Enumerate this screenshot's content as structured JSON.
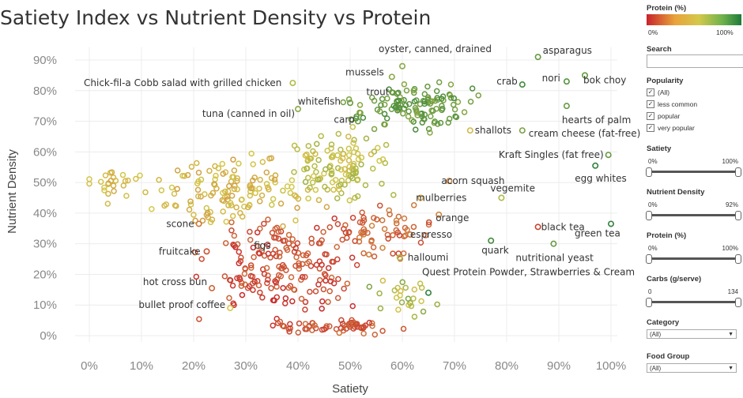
{
  "title": "Satiety Index vs Nutrient Density vs Protein",
  "chart_data": {
    "type": "scatter",
    "title": "Satiety Index vs Nutrient Density vs Protein",
    "xlabel": "Satiety",
    "ylabel": "Nutrient Density",
    "xlim": [
      0,
      1
    ],
    "ylim": [
      0,
      0.92
    ],
    "xticks": [
      "0%",
      "10%",
      "20%",
      "30%",
      "40%",
      "50%",
      "60%",
      "70%",
      "80%",
      "90%",
      "100%"
    ],
    "yticks": [
      "0%",
      "10%",
      "20%",
      "30%",
      "40%",
      "50%",
      "60%",
      "70%",
      "80%",
      "90%"
    ],
    "color_encoding": "Protein (%)",
    "grid": true,
    "labeled_points": [
      {
        "label": "asparagus",
        "x": 0.86,
        "y": 0.91,
        "protein": 0.8
      },
      {
        "label": "oyster, canned, drained",
        "x": 0.6,
        "y": 0.88,
        "protein": 0.7
      },
      {
        "label": "mussels",
        "x": 0.58,
        "y": 0.845,
        "protein": 0.7
      },
      {
        "label": "bok choy",
        "x": 0.95,
        "y": 0.85,
        "protein": 0.8
      },
      {
        "label": "nori",
        "x": 0.915,
        "y": 0.83,
        "protein": 0.85
      },
      {
        "label": "crab",
        "x": 0.83,
        "y": 0.82,
        "protein": 0.9
      },
      {
        "label": "Chick-fil-a Cobb salad with grilled chicken",
        "x": 0.39,
        "y": 0.825,
        "protein": 0.6
      },
      {
        "label": "trout",
        "x": 0.59,
        "y": 0.79,
        "protein": 0.8
      },
      {
        "label": "whitefish",
        "x": 0.5,
        "y": 0.76,
        "protein": 0.8
      },
      {
        "label": "hearts of palm",
        "x": 0.915,
        "y": 0.75,
        "protein": 0.8
      },
      {
        "label": "tuna (canned in oil)",
        "x": 0.4,
        "y": 0.74,
        "protein": 0.7
      },
      {
        "label": "carp",
        "x": 0.515,
        "y": 0.7,
        "protein": 0.8
      },
      {
        "label": "shallots",
        "x": 0.73,
        "y": 0.67,
        "protein": 0.45
      },
      {
        "label": "cream cheese (fat-free)",
        "x": 0.83,
        "y": 0.67,
        "protein": 0.75
      },
      {
        "label": "Kraft Singles (fat free)",
        "x": 0.995,
        "y": 0.59,
        "protein": 0.8
      },
      {
        "label": "egg whites",
        "x": 0.97,
        "y": 0.555,
        "protein": 0.95
      },
      {
        "label": "acorn squash",
        "x": 0.69,
        "y": 0.505,
        "protein": 0.3
      },
      {
        "label": "mulberries",
        "x": 0.635,
        "y": 0.45,
        "protein": 0.4
      },
      {
        "label": "vegemite",
        "x": 0.79,
        "y": 0.45,
        "protein": 0.6
      },
      {
        "label": "orange",
        "x": 0.67,
        "y": 0.395,
        "protein": 0.3
      },
      {
        "label": "scone",
        "x": 0.21,
        "y": 0.365,
        "protein": 0.25
      },
      {
        "label": "black tea",
        "x": 0.86,
        "y": 0.355,
        "protein": 0.1
      },
      {
        "label": "espresso",
        "x": 0.615,
        "y": 0.33,
        "protein": 0.25
      },
      {
        "label": "green tea",
        "x": 1.0,
        "y": 0.365,
        "protein": 0.95
      },
      {
        "label": "figs",
        "x": 0.375,
        "y": 0.31,
        "protein": 0.2
      },
      {
        "label": "fruitcake",
        "x": 0.225,
        "y": 0.275,
        "protein": 0.15
      },
      {
        "label": "quark",
        "x": 0.77,
        "y": 0.31,
        "protein": 0.9
      },
      {
        "label": "halloumi",
        "x": 0.595,
        "y": 0.255,
        "protein": 0.6
      },
      {
        "label": "nutritional yeast",
        "x": 0.89,
        "y": 0.3,
        "protein": 0.8
      },
      {
        "label": "hot cross bun",
        "x": 0.235,
        "y": 0.155,
        "protein": 0.2
      },
      {
        "label": "Quest Protein Powder, Strawberries & Cream",
        "x": 0.65,
        "y": 0.14,
        "protein": 0.95
      },
      {
        "label": "bullet proof coffee",
        "x": 0.27,
        "y": 0.09,
        "protein": 0.5
      }
    ]
  },
  "sidebar": {
    "legend": {
      "title": "Protein (%)",
      "min_label": "0%",
      "max_label": "100%",
      "low_color": "#c8232c",
      "mid_color": "#d4c84a",
      "high_color": "#1e7b3a"
    },
    "search": {
      "title": "Search",
      "placeholder": ""
    },
    "popularity": {
      "title": "Popularity",
      "options": [
        {
          "label": "(All)",
          "checked": "✓"
        },
        {
          "label": "less common",
          "checked": "✓"
        },
        {
          "label": "popular",
          "checked": "✓"
        },
        {
          "label": "very popular",
          "checked": "✓"
        }
      ]
    },
    "satiety": {
      "title": "Satiety",
      "min": "0%",
      "max": "100%",
      "low": 0,
      "high": 1
    },
    "nutrient_density": {
      "title": "Nutrient Density",
      "min": "0%",
      "max": "92%",
      "low": 0,
      "high": 1
    },
    "protein": {
      "title": "Protein (%)",
      "min": "0%",
      "max": "100%",
      "low": 0,
      "high": 1
    },
    "carbs": {
      "title": "Carbs (g/serve)",
      "min": "0",
      "max": "134",
      "low": 0,
      "high": 1
    },
    "category": {
      "title": "Category",
      "value": "(All)"
    },
    "food_group": {
      "title": "Food Group",
      "value": "(All)"
    }
  }
}
